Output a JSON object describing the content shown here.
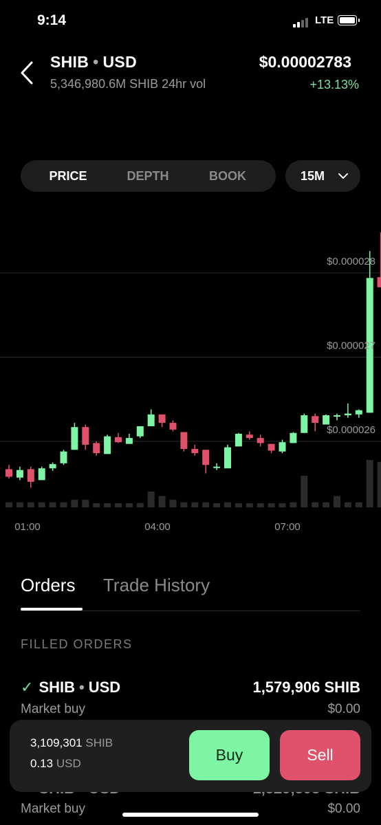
{
  "status_bar": {
    "time": "9:14",
    "network": "LTE"
  },
  "header": {
    "base": "SHIB",
    "quote": "USD",
    "separator": "•",
    "volume": "5,346,980.6M SHIB 24hr vol",
    "price": "$0.00002783",
    "change": "+13.13%"
  },
  "tabs": {
    "items": [
      "PRICE",
      "DEPTH",
      "BOOK"
    ],
    "active": "PRICE",
    "interval": "15M"
  },
  "chart_data": {
    "type": "candlestick",
    "y_ticks": [
      "$0.000028",
      "$0.000027",
      "$0.000026"
    ],
    "x_ticks": [
      "01:00",
      "04:00",
      "07:00"
    ],
    "colors": {
      "up": "#7ef5a5",
      "down": "#e0526b",
      "volume": "#2b2b2b"
    },
    "candles": [
      {
        "o": 2.567e-05,
        "h": 2.572e-05,
        "l": 2.556e-05,
        "c": 2.558e-05,
        "vol": 0.08
      },
      {
        "o": 2.557e-05,
        "h": 2.57e-05,
        "l": 2.554e-05,
        "c": 2.566e-05,
        "vol": 0.08
      },
      {
        "o": 2.567e-05,
        "h": 2.57e-05,
        "l": 2.545e-05,
        "c": 2.552e-05,
        "vol": 0.08
      },
      {
        "o": 2.554e-05,
        "h": 2.57e-05,
        "l": 2.554e-05,
        "c": 2.568e-05,
        "vol": 0.08
      },
      {
        "o": 2.568e-05,
        "h": 2.575e-05,
        "l": 2.565e-05,
        "c": 2.573e-05,
        "vol": 0.08
      },
      {
        "o": 2.574e-05,
        "h": 2.59e-05,
        "l": 2.572e-05,
        "c": 2.588e-05,
        "vol": 0.08
      },
      {
        "o": 2.59e-05,
        "h": 2.622e-05,
        "l": 2.59e-05,
        "c": 2.617e-05,
        "vol": 0.12
      },
      {
        "o": 2.617e-05,
        "h": 2.62e-05,
        "l": 2.59e-05,
        "c": 2.596e-05,
        "vol": 0.12
      },
      {
        "o": 2.598e-05,
        "h": 2.6e-05,
        "l": 2.583e-05,
        "c": 2.586e-05,
        "vol": 0.06
      },
      {
        "o": 2.585e-05,
        "h": 2.608e-05,
        "l": 2.585e-05,
        "c": 2.606e-05,
        "vol": 0.06
      },
      {
        "o": 2.605e-05,
        "h": 2.61e-05,
        "l": 2.598e-05,
        "c": 2.599e-05,
        "vol": 0.06
      },
      {
        "o": 2.597e-05,
        "h": 2.609e-05,
        "l": 2.597e-05,
        "c": 2.604e-05,
        "vol": 0.06
      },
      {
        "o": 2.606e-05,
        "h": 2.618e-05,
        "l": 2.604e-05,
        "c": 2.618e-05,
        "vol": 0.07
      },
      {
        "o": 2.618e-05,
        "h": 2.638e-05,
        "l": 2.618e-05,
        "c": 2.632e-05,
        "vol": 0.25
      },
      {
        "o": 2.632e-05,
        "h": 2.632e-05,
        "l": 2.617e-05,
        "c": 2.622e-05,
        "vol": 0.18
      },
      {
        "o": 2.622e-05,
        "h": 2.625e-05,
        "l": 2.612e-05,
        "c": 2.614e-05,
        "vol": 0.12
      },
      {
        "o": 2.611e-05,
        "h": 2.611e-05,
        "l": 2.588e-05,
        "c": 2.591e-05,
        "vol": 0.08
      },
      {
        "o": 2.591e-05,
        "h": 2.596e-05,
        "l": 2.583e-05,
        "c": 2.586e-05,
        "vol": 0.08
      },
      {
        "o": 2.59e-05,
        "h": 2.59e-05,
        "l": 2.562e-05,
        "c": 2.572e-05,
        "vol": 0.08
      },
      {
        "o": 2.57e-05,
        "h": 2.574e-05,
        "l": 2.566e-05,
        "c": 2.57e-05,
        "vol": 0.06
      },
      {
        "o": 2.568e-05,
        "h": 2.596e-05,
        "l": 2.568e-05,
        "c": 2.593e-05,
        "vol": 0.08
      },
      {
        "o": 2.594e-05,
        "h": 2.61e-05,
        "l": 2.594e-05,
        "c": 2.609e-05,
        "vol": 0.06
      },
      {
        "o": 2.608e-05,
        "h": 2.612e-05,
        "l": 2.602e-05,
        "c": 2.604e-05,
        "vol": 0.06
      },
      {
        "o": 2.604e-05,
        "h": 2.608e-05,
        "l": 2.594e-05,
        "c": 2.598e-05,
        "vol": 0.06
      },
      {
        "o": 2.597e-05,
        "h": 2.597e-05,
        "l": 2.586e-05,
        "c": 2.589e-05,
        "vol": 0.06
      },
      {
        "o": 2.588e-05,
        "h": 2.602e-05,
        "l": 2.586e-05,
        "c": 2.599e-05,
        "vol": 0.06
      },
      {
        "o": 2.598e-05,
        "h": 2.611e-05,
        "l": 2.598e-05,
        "c": 2.61e-05,
        "vol": 0.08
      },
      {
        "o": 2.61e-05,
        "h": 2.633e-05,
        "l": 2.61e-05,
        "c": 2.631e-05,
        "vol": 0.5
      },
      {
        "o": 2.63e-05,
        "h": 2.633e-05,
        "l": 2.612e-05,
        "c": 2.622e-05,
        "vol": 0.08
      },
      {
        "o": 2.62e-05,
        "h": 2.632e-05,
        "l": 2.62e-05,
        "c": 2.631e-05,
        "vol": 0.08
      },
      {
        "o": 2.631e-05,
        "h": 2.633e-05,
        "l": 2.625e-05,
        "c": 2.631e-05,
        "vol": 0.18
      },
      {
        "o": 2.631e-05,
        "h": 2.645e-05,
        "l": 2.628e-05,
        "c": 2.633e-05,
        "vol": 0.08
      },
      {
        "o": 2.632e-05,
        "h": 2.638e-05,
        "l": 2.628e-05,
        "c": 2.637e-05,
        "vol": 0.08
      },
      {
        "o": 2.634e-05,
        "h": 2.826e-05,
        "l": 2.634e-05,
        "c": 2.794e-05,
        "vol": 0.75
      },
      {
        "o": 2.795e-05,
        "h": 2.848e-05,
        "l": 2.785e-05,
        "c": 2.783e-05,
        "vol": 0.72
      }
    ]
  },
  "orders": {
    "tabs": {
      "orders": "Orders",
      "history": "Trade History"
    },
    "section_title": "FILLED ORDERS",
    "items": [
      {
        "base": "SHIB",
        "quote": "USD",
        "qty": "1,579,906 SHIB",
        "type": "Market buy",
        "amount": "$0.00"
      },
      {
        "base": "SHIB",
        "quote": "USD",
        "qty": "1,529,395 SHIB",
        "type": "Market buy",
        "amount": "$0.00"
      }
    ]
  },
  "balance": {
    "shib_amount": "3,109,301",
    "shib_unit": "SHIB",
    "usd_amount": "0.13",
    "usd_unit": "USD"
  },
  "actions": {
    "buy": "Buy",
    "sell": "Sell"
  }
}
